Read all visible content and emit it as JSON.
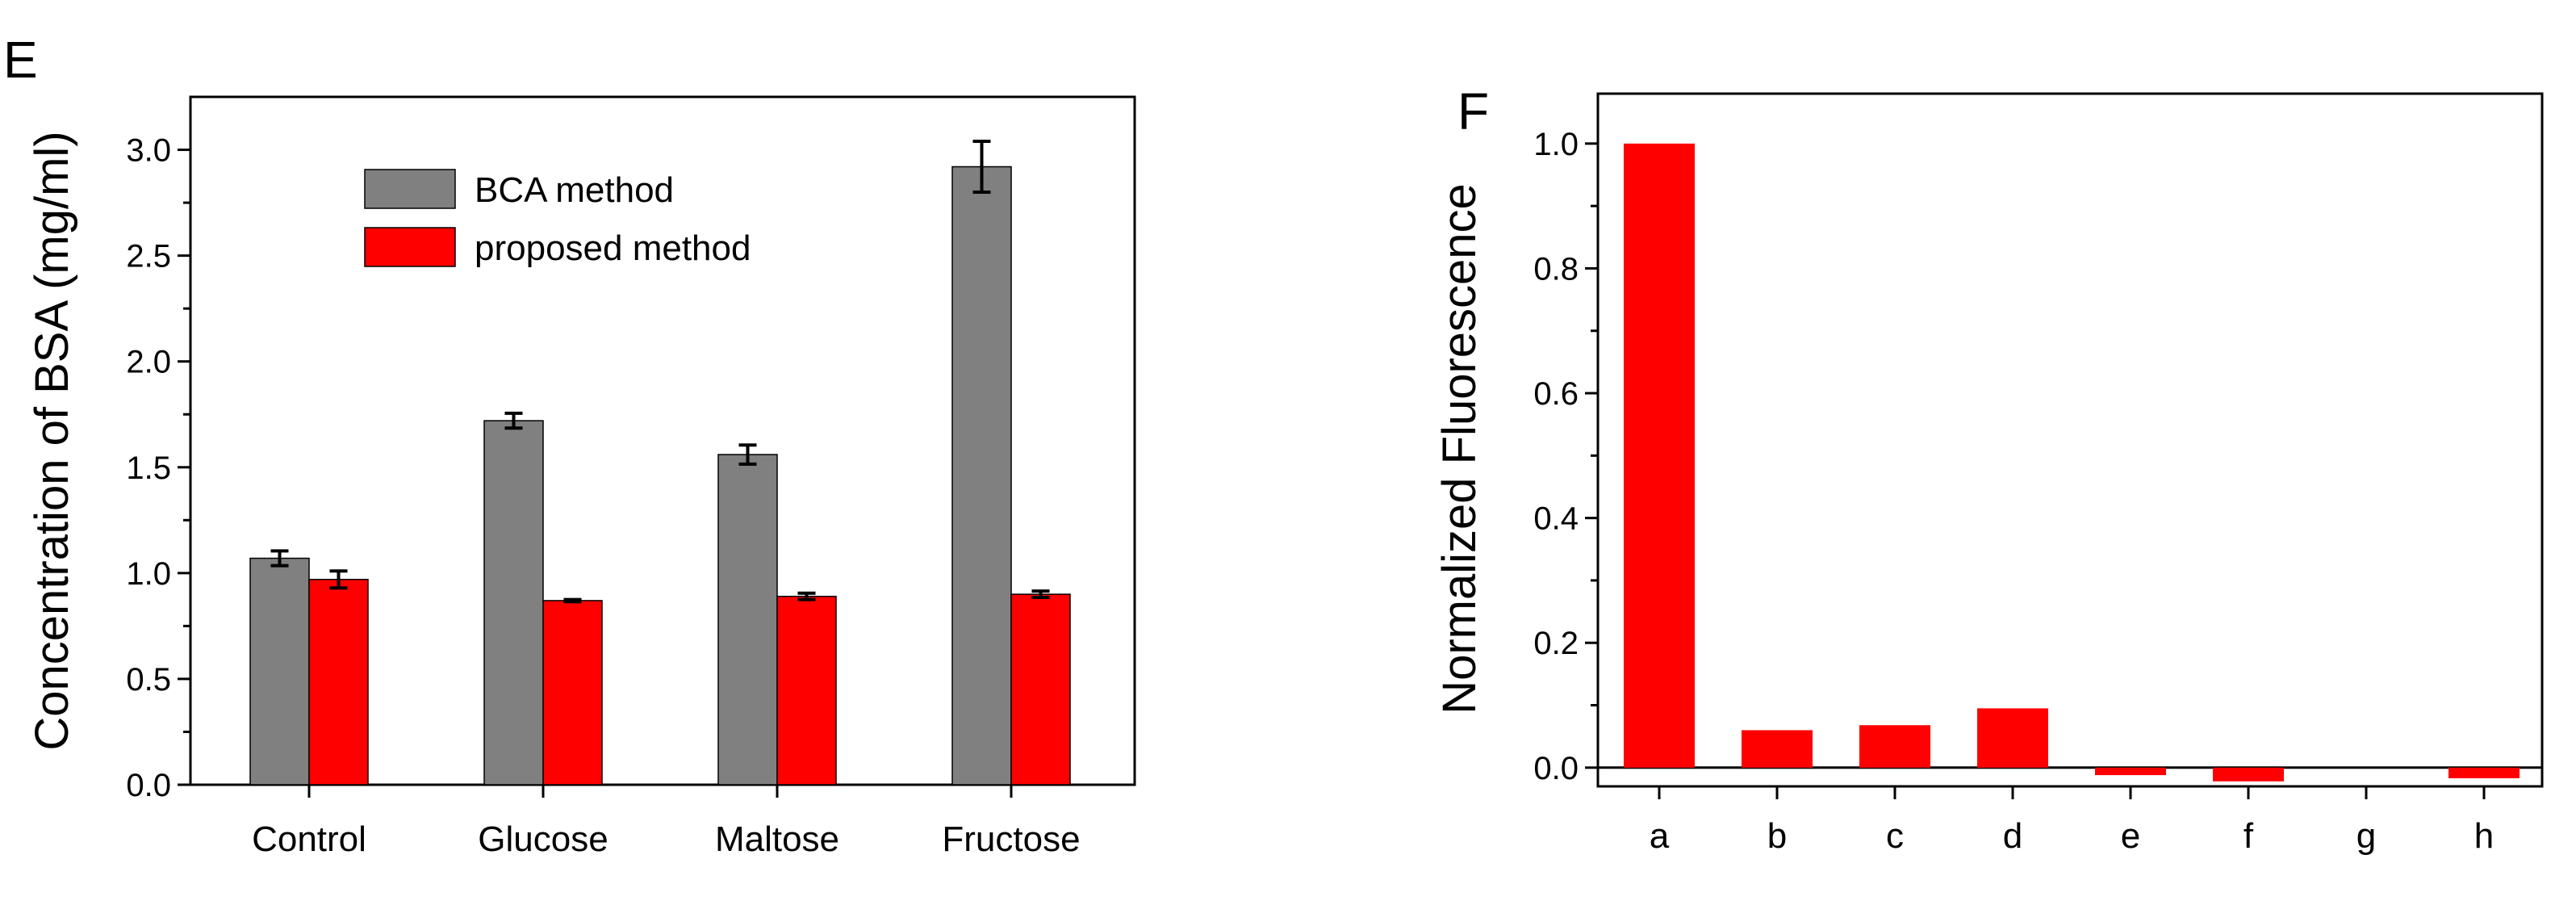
{
  "colors": {
    "bca": "#808080",
    "proposed": "#ff0000",
    "axis": "#000000"
  },
  "chart_data": [
    {
      "panel": "E",
      "type": "bar",
      "title": "",
      "xlabel": "",
      "ylabel": "Concentration of BSA (mg/ml)",
      "ylim": [
        0,
        3.25
      ],
      "yticks": [
        "0.0",
        "0.5",
        "1.0",
        "1.5",
        "2.0",
        "2.5",
        "3.0"
      ],
      "categories": [
        "Control",
        "Glucose",
        "Maltose",
        "Fructose"
      ],
      "series": [
        {
          "name": "BCA method",
          "color": "#808080",
          "values": [
            1.07,
            1.72,
            1.56,
            2.92
          ],
          "errors": [
            0.035,
            0.035,
            0.045,
            0.12
          ]
        },
        {
          "name": "proposed method",
          "color": "#ff0000",
          "values": [
            0.97,
            0.87,
            0.89,
            0.9
          ],
          "errors": [
            0.04,
            0.005,
            0.015,
            0.015
          ]
        }
      ],
      "legend_position": "top-left"
    },
    {
      "panel": "F",
      "type": "bar",
      "title": "",
      "xlabel": "",
      "ylabel": "Normalized Fluorescence",
      "ylim": [
        -0.03,
        1.08
      ],
      "yticks": [
        "0.0",
        "0.2",
        "0.4",
        "0.6",
        "0.8",
        "1.0"
      ],
      "categories": [
        "a",
        "b",
        "c",
        "d",
        "e",
        "f",
        "g",
        "h"
      ],
      "series": [
        {
          "name": "Normalized Fluorescence",
          "color": "#ff0000",
          "values": [
            1.0,
            0.06,
            0.068,
            0.095,
            -0.012,
            -0.022,
            0.0,
            -0.017
          ]
        }
      ]
    }
  ]
}
